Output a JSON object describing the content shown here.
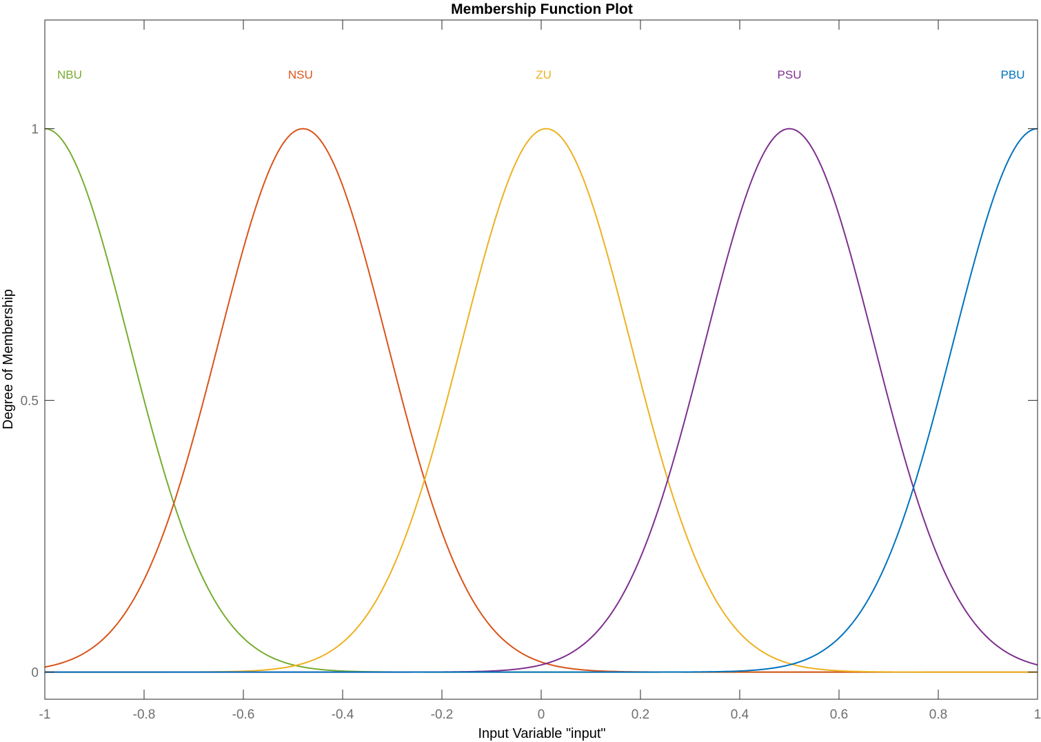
{
  "chart_data": {
    "type": "line",
    "title": "Membership Function Plot",
    "xlabel": "Input Variable \"input\"",
    "ylabel": "Degree of Membership",
    "xlim": [
      -1,
      1
    ],
    "ylim": [
      -0.05,
      1.2
    ],
    "xticks": [
      -1,
      -0.8,
      -0.6,
      -0.4,
      -0.2,
      0,
      0.2,
      0.4,
      0.6,
      0.8,
      1
    ],
    "xtick_labels": [
      "-1",
      "-0.8",
      "-0.6",
      "-0.4",
      "-0.2",
      "0",
      "0.2",
      "0.4",
      "0.6",
      "0.8",
      "1"
    ],
    "yticks": [
      0,
      0.5,
      1
    ],
    "ytick_labels": [
      "0",
      "0.5",
      "1"
    ],
    "grid": false,
    "box": true,
    "series": [
      {
        "name": "NBU",
        "function": "gaussmf",
        "sigma": 0.17,
        "center": -1.0,
        "label_x": -0.975,
        "label_y": 1.1,
        "color": "#77ac30"
      },
      {
        "name": "NSU",
        "function": "gaussmf",
        "sigma": 0.17,
        "center": -0.48,
        "label_x": -0.485,
        "label_y": 1.1,
        "color": "#d95319"
      },
      {
        "name": "ZU",
        "function": "gaussmf",
        "sigma": 0.17,
        "center": 0.01,
        "label_x": 0.005,
        "label_y": 1.1,
        "color": "#edb120"
      },
      {
        "name": "PSU",
        "function": "gaussmf",
        "sigma": 0.17,
        "center": 0.5,
        "label_x": 0.5,
        "label_y": 1.1,
        "color": "#7e2f8e"
      },
      {
        "name": "PBU",
        "function": "gaussmf",
        "sigma": 0.17,
        "center": 1.0,
        "label_x": 0.95,
        "label_y": 1.1,
        "color": "#0072bd"
      }
    ]
  }
}
